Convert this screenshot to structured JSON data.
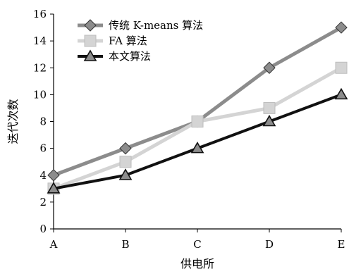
{
  "chart_data": {
    "type": "line",
    "categories": [
      "A",
      "B",
      "C",
      "D",
      "E"
    ],
    "xlabel": "供电所",
    "ylabel": "迭代次数",
    "ylim": [
      0,
      16
    ],
    "yticks": [
      0,
      2,
      4,
      6,
      8,
      10,
      12,
      14,
      16
    ],
    "grid": false,
    "legend_position": "top-left",
    "series": [
      {
        "name": "传统 K-means 算法",
        "values": [
          4,
          6,
          8,
          12,
          15
        ],
        "color": "#8c8c8c",
        "marker": "diamond"
      },
      {
        "name": "FA 算法",
        "values": [
          3,
          5,
          8,
          9,
          12
        ],
        "color": "#d4d4d4",
        "marker": "square"
      },
      {
        "name": "本文算法",
        "values": [
          3,
          4,
          6,
          8,
          10
        ],
        "color": "#111111",
        "marker": "triangle"
      }
    ]
  }
}
